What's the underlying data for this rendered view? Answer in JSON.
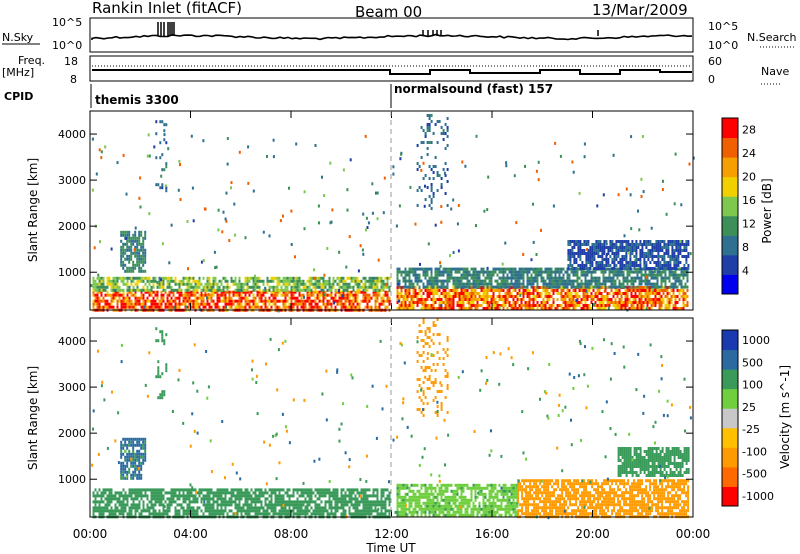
{
  "header": {
    "station": "Rankin Inlet (fitACF)",
    "beam": "Beam 00",
    "date": "13/Mar/2009"
  },
  "panels": {
    "noise": {
      "left_label": "N.Sky",
      "left_ticks": [
        "10^5",
        "10^0"
      ],
      "right_ticks": [
        "10^5",
        "10^0"
      ],
      "right_label": "N.Search"
    },
    "freq": {
      "left_label_1": "Freq.",
      "left_label_2": "[MHz]",
      "left_ticks": [
        "18",
        "8"
      ],
      "right_ticks": [
        "60",
        "0"
      ],
      "right_label": "Nave"
    },
    "cpid": {
      "label": "CPID",
      "programs": [
        {
          "name": "themis 3300",
          "start_hour": 0
        },
        {
          "name": "normalsound (fast) 157",
          "start_hour": 12
        }
      ]
    }
  },
  "colors": {
    "power_scale": [
      "#0000ee",
      "#1f3ea8",
      "#2f6f8f",
      "#3d8f5a",
      "#7ec850",
      "#f2d000",
      "#f5a000",
      "#f06000",
      "#ff0000"
    ],
    "velocity_scale": [
      "#ff0000",
      "#ff6a00",
      "#ff9a00",
      "#ffc000",
      "#c8c8c8",
      "#6fcf3f",
      "#3a9a5a",
      "#2a6aa0",
      "#1a3ab0"
    ]
  },
  "chart_data": [
    {
      "type": "heatmap",
      "panel": "power",
      "title": "Power",
      "xlabel": "Time UT",
      "ylabel": "Slant Range [km]",
      "x_ticks": [
        "00:00",
        "04:00",
        "08:00",
        "12:00",
        "16:00",
        "20:00",
        "00:00"
      ],
      "x_range_hours": [
        0,
        24
      ],
      "y_ticks": [
        1000,
        2000,
        3000,
        4000
      ],
      "y_range_km": [
        180,
        4500
      ],
      "colorbar_label": "Power [dB]",
      "colorbar_ticks": [
        4,
        8,
        12,
        16,
        20,
        24,
        28
      ],
      "colorbar_range": [
        0,
        30
      ],
      "regions": [
        {
          "t0": 0.1,
          "t1": 11.9,
          "r0": 200,
          "r1": 600,
          "value": 26
        },
        {
          "t0": 0.1,
          "t1": 11.9,
          "r0": 600,
          "r1": 900,
          "value": 14
        },
        {
          "t0": 1.2,
          "t1": 2.2,
          "r0": 1000,
          "r1": 1900,
          "value": 10
        },
        {
          "t0": 2.6,
          "t1": 3.0,
          "r0": 2800,
          "r1": 4300,
          "value": 8
        },
        {
          "t0": 12.2,
          "t1": 23.8,
          "r0": 200,
          "r1": 700,
          "value": 24
        },
        {
          "t0": 12.2,
          "t1": 23.8,
          "r0": 700,
          "r1": 1100,
          "value": 10
        },
        {
          "t0": 13.0,
          "t1": 14.2,
          "r0": 2400,
          "r1": 4500,
          "value": 8
        },
        {
          "t0": 19.0,
          "t1": 23.8,
          "r0": 1100,
          "r1": 1700,
          "value": 6
        }
      ]
    },
    {
      "type": "heatmap",
      "panel": "velocity",
      "xlabel": "Time UT",
      "ylabel": "Slant Range [km]",
      "x_ticks": [
        "00:00",
        "04:00",
        "08:00",
        "12:00",
        "16:00",
        "20:00",
        "00:00"
      ],
      "x_range_hours": [
        0,
        24
      ],
      "y_ticks": [
        1000,
        2000,
        3000,
        4000
      ],
      "y_range_km": [
        180,
        4500
      ],
      "colorbar_label": "Velocity [m s^-1]",
      "colorbar_ticks": [
        "1000",
        "500",
        "100",
        "25",
        "-25",
        "-100",
        "-500",
        "-1000"
      ],
      "regions": [
        {
          "t0": 0.1,
          "t1": 11.9,
          "r0": 200,
          "r1": 800,
          "value": 150
        },
        {
          "t0": 1.2,
          "t1": 2.2,
          "r0": 1000,
          "r1": 1900,
          "value": 600
        },
        {
          "t0": 2.6,
          "t1": 3.0,
          "r0": 2800,
          "r1": 4300,
          "value": 200
        },
        {
          "t0": 12.2,
          "t1": 17.0,
          "r0": 200,
          "r1": 900,
          "value": 80
        },
        {
          "t0": 17.0,
          "t1": 23.8,
          "r0": 200,
          "r1": 1000,
          "value": -300
        },
        {
          "t0": 13.0,
          "t1": 14.2,
          "r0": 2400,
          "r1": 4500,
          "value": -150
        },
        {
          "t0": 21.0,
          "t1": 23.8,
          "r0": 1100,
          "r1": 1700,
          "value": 300
        }
      ]
    }
  ]
}
